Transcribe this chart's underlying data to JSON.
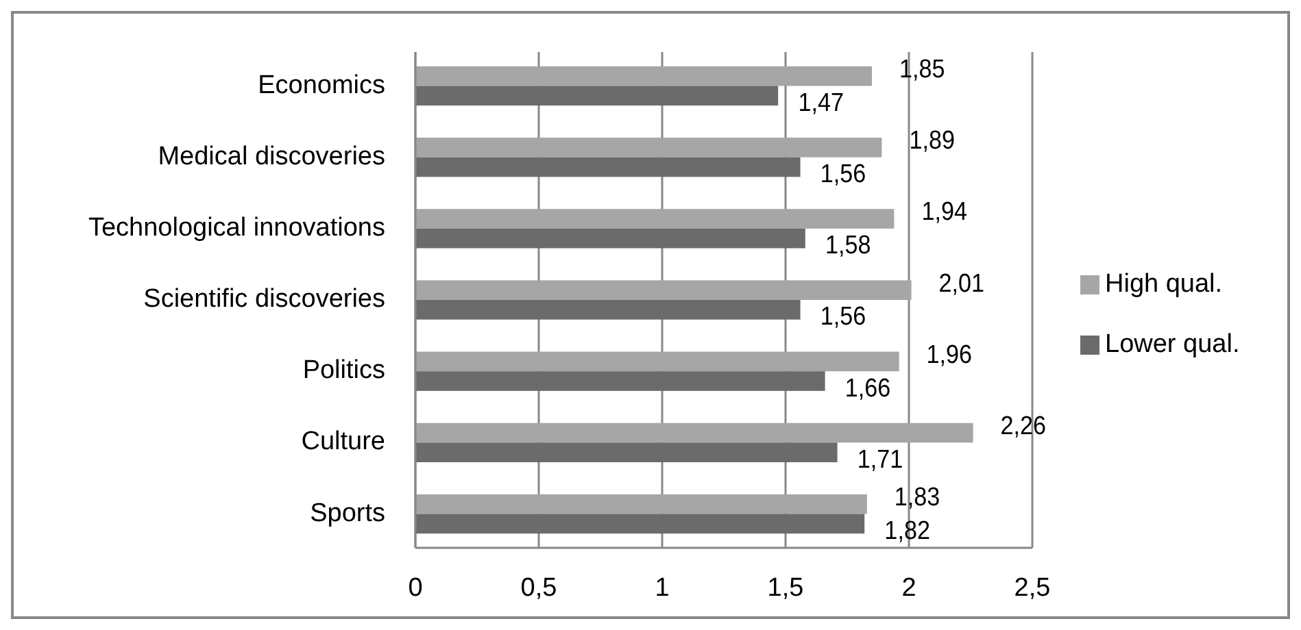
{
  "chart_data": {
    "type": "bar",
    "orientation": "horizontal",
    "categories": [
      "Economics",
      "Medical discoveries",
      "Technological innovations",
      "Scientific discoveries",
      "Politics",
      "Culture",
      "Sports"
    ],
    "series": [
      {
        "name": "High qual.",
        "color": "#a6a6a6",
        "values": [
          1.85,
          1.89,
          1.94,
          2.01,
          1.96,
          2.26,
          1.83
        ],
        "value_labels": [
          "1,85",
          "1,89",
          "1,94",
          "2,01",
          "1,96",
          "2,26",
          "1,83"
        ]
      },
      {
        "name": "Lower qual.",
        "color": "#6b6b6b",
        "values": [
          1.47,
          1.56,
          1.58,
          1.56,
          1.66,
          1.71,
          1.82
        ],
        "value_labels": [
          "1,47",
          "1,56",
          "1,58",
          "1,56",
          "1,66",
          "1,71",
          "1,82"
        ]
      }
    ],
    "xlim": [
      0,
      2.5
    ],
    "xticks": [
      0,
      {
        "value": 0.5,
        "label": "0,5"
      },
      1,
      {
        "value": 1.5,
        "label": "1,5"
      },
      2,
      {
        "value": 2.5,
        "label": "2,5"
      }
    ],
    "grid": "x",
    "legend": "right"
  }
}
